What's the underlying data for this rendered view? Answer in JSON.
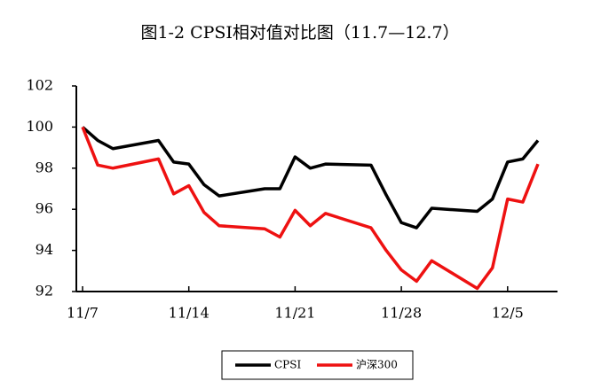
{
  "chart_data": {
    "type": "line",
    "title": "图1-2 CPSI相对值对比图（11.7—12.7）",
    "x": [
      "11/7",
      "11/8",
      "11/9",
      "11/12",
      "11/13",
      "11/14",
      "11/15",
      "11/16",
      "11/19",
      "11/20",
      "11/21",
      "11/22",
      "11/23",
      "11/26",
      "11/27",
      "11/28",
      "11/29",
      "11/30",
      "12/3",
      "12/4",
      "12/5",
      "12/6",
      "12/7"
    ],
    "series": [
      {
        "name": "CPSI",
        "color": "#000000",
        "values": [
          100,
          99.35,
          98.95,
          99.35,
          98.3,
          98.2,
          97.2,
          96.65,
          97.0,
          97.0,
          98.55,
          98.0,
          98.2,
          98.15,
          96.7,
          95.35,
          95.1,
          96.05,
          95.9,
          96.5,
          98.3,
          98.45,
          99.35
        ]
      },
      {
        "name": "沪深300",
        "color": "#ee1111",
        "values": [
          100,
          98.15,
          98.0,
          98.45,
          96.75,
          97.15,
          95.85,
          95.2,
          95.05,
          94.65,
          95.95,
          95.2,
          95.8,
          95.1,
          94.0,
          93.05,
          92.5,
          93.5,
          92.15,
          93.15,
          96.5,
          96.35,
          98.2
        ]
      }
    ],
    "ylim": [
      92,
      102
    ],
    "yticks": [
      92,
      94,
      96,
      98,
      100,
      102
    ],
    "xticks": [
      "11/7",
      "11/14",
      "11/21",
      "11/28",
      "12/5"
    ],
    "legend": "bottom"
  }
}
